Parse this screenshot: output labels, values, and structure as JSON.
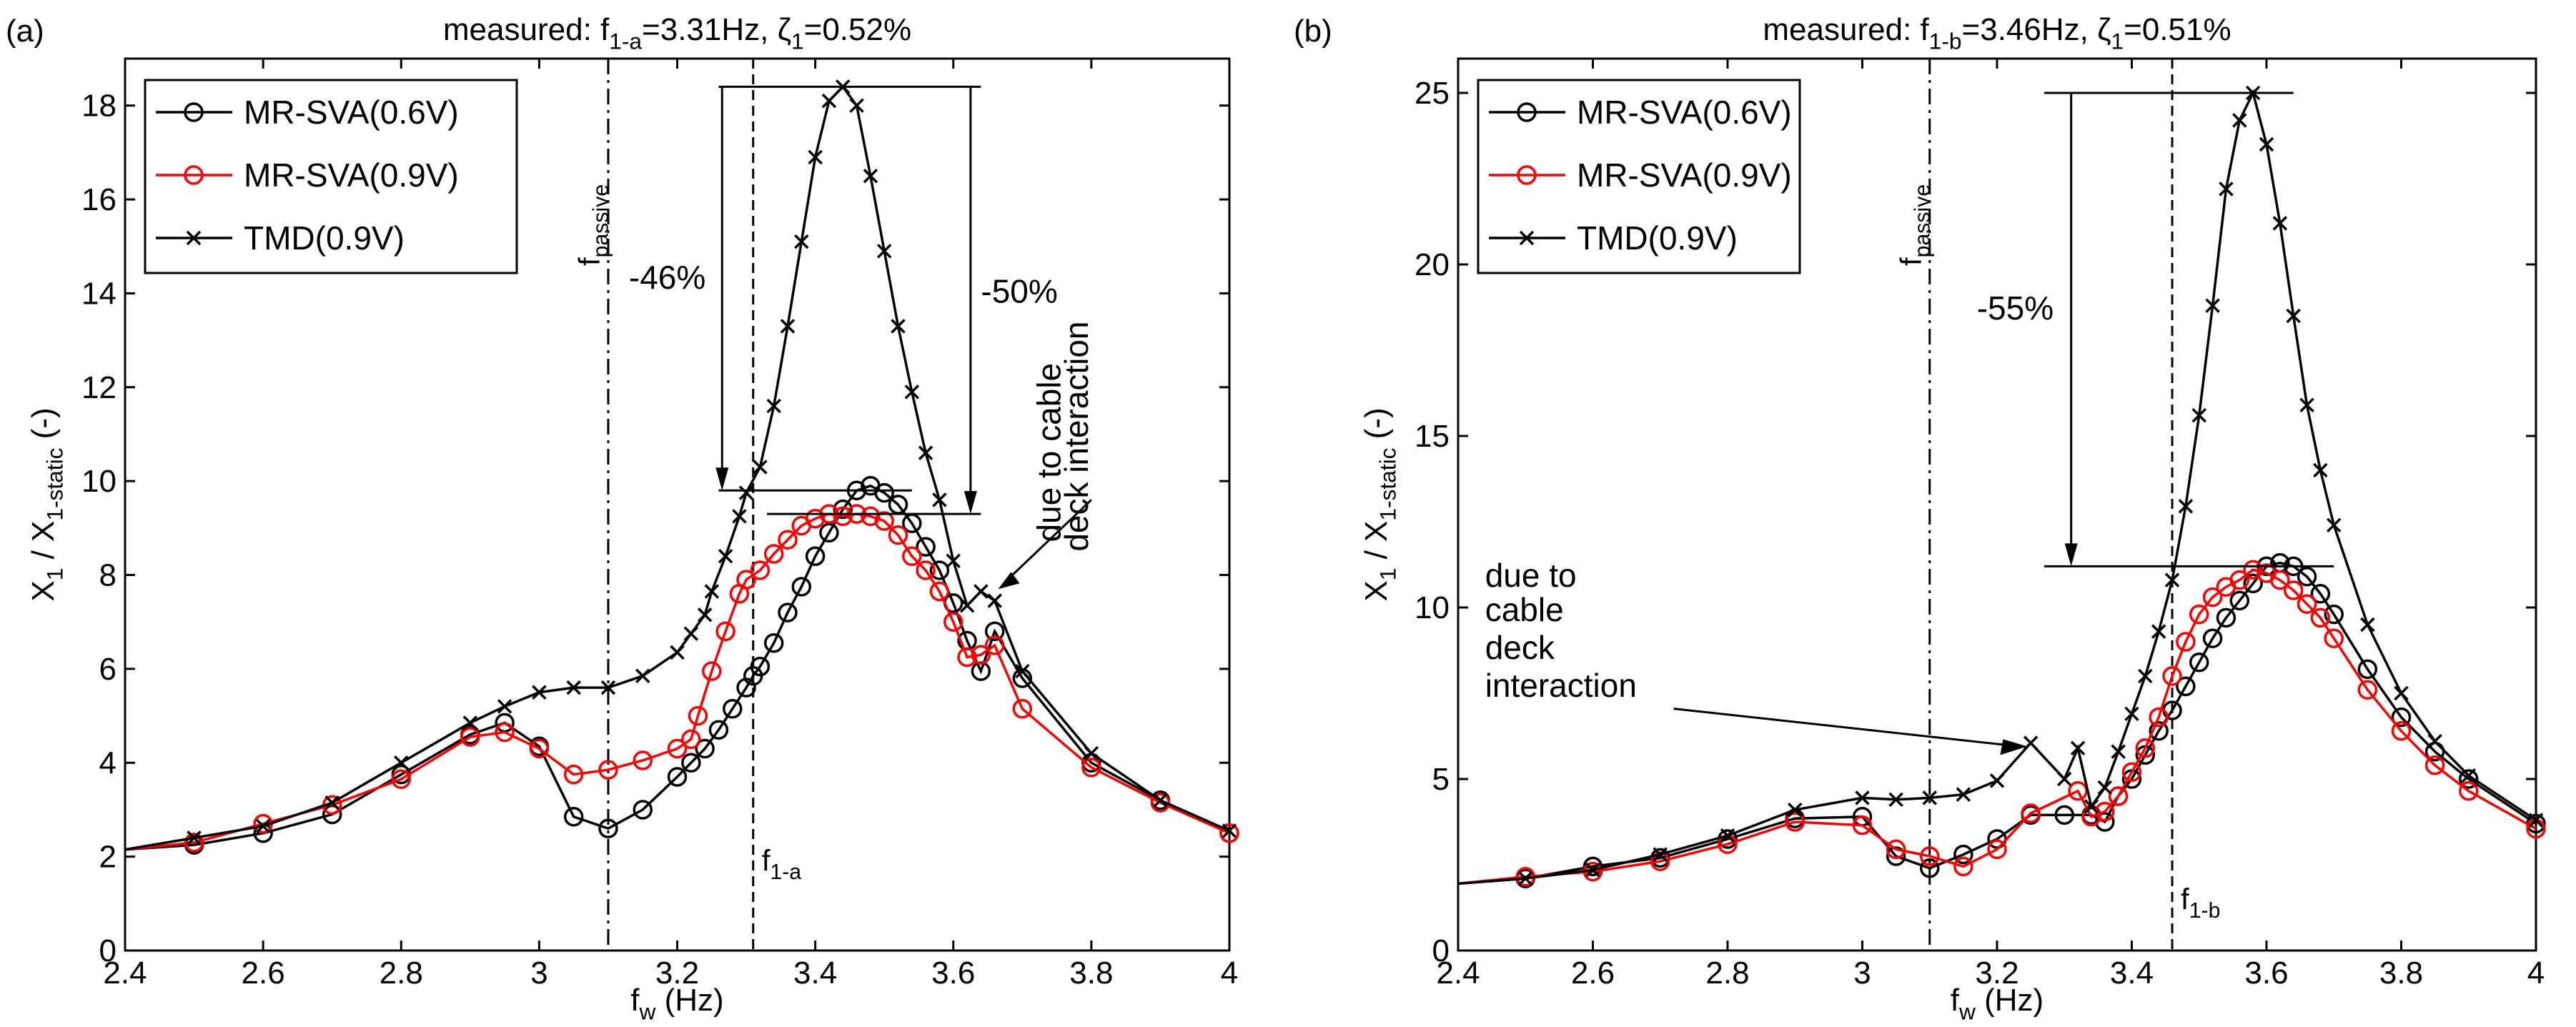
{
  "chart_data": [
    {
      "type": "line",
      "panel_label": "(a)",
      "title_parts": [
        {
          "t": "measured: f"
        },
        {
          "t": "1-a",
          "sub": true
        },
        {
          "t": "=3.31Hz, ζ"
        },
        {
          "t": "1",
          "sub": true
        },
        {
          "t": "=0.52%"
        }
      ],
      "xlabel_parts": [
        {
          "t": "f"
        },
        {
          "t": "w",
          "sub": true
        },
        {
          "t": " (Hz)"
        }
      ],
      "ylabel_parts": [
        {
          "t": "X"
        },
        {
          "t": "1",
          "sub": true
        },
        {
          "t": " / X"
        },
        {
          "t": "1-static",
          "sub": true
        },
        {
          "t": " (-)"
        }
      ],
      "xlim": [
        2.4,
        4
      ],
      "ylim": [
        0,
        19
      ],
      "xticks": [
        2.4,
        2.6,
        2.8,
        3,
        3.2,
        3.4,
        3.6,
        3.8,
        4
      ],
      "xtick_labels": [
        "2.4",
        "2.6",
        "2.8",
        "3",
        "3.2",
        "3.4",
        "3.6",
        "3.8",
        "4"
      ],
      "yticks": [
        0,
        2,
        4,
        6,
        8,
        10,
        12,
        14,
        16,
        18
      ],
      "ytick_labels": [
        "0",
        "2",
        "4",
        "6",
        "8",
        "10",
        "12",
        "14",
        "16",
        "18"
      ],
      "legend_placement": "top-left",
      "series": [
        {
          "name": "MR-SVA(0.6V)",
          "color": "#000000",
          "marker": "circle",
          "x": [
            2.4,
            2.5,
            2.6,
            2.7,
            2.8,
            2.9,
            2.95,
            3.0,
            3.05,
            3.1,
            3.15,
            3.2,
            3.22,
            3.24,
            3.26,
            3.28,
            3.3,
            3.31,
            3.32,
            3.34,
            3.36,
            3.38,
            3.4,
            3.42,
            3.44,
            3.46,
            3.48,
            3.5,
            3.52,
            3.54,
            3.56,
            3.58,
            3.6,
            3.62,
            3.64,
            3.66,
            3.7,
            3.8,
            3.9,
            4.0
          ],
          "y": [
            2.15,
            2.25,
            2.5,
            2.9,
            3.75,
            4.6,
            4.85,
            4.35,
            2.85,
            2.6,
            3.0,
            3.7,
            4.0,
            4.3,
            4.7,
            5.15,
            5.6,
            5.85,
            6.05,
            6.55,
            7.2,
            7.75,
            8.4,
            8.9,
            9.4,
            9.8,
            9.9,
            9.75,
            9.5,
            9.1,
            8.6,
            8.1,
            7.4,
            6.6,
            5.95,
            6.8,
            5.8,
            4.0,
            3.2,
            2.5
          ]
        },
        {
          "name": "MR-SVA(0.9V)",
          "color": "#ff0000",
          "marker": "circle",
          "x": [
            2.4,
            2.5,
            2.6,
            2.7,
            2.8,
            2.9,
            2.95,
            3.0,
            3.05,
            3.1,
            3.15,
            3.2,
            3.22,
            3.23,
            3.25,
            3.27,
            3.29,
            3.3,
            3.32,
            3.34,
            3.36,
            3.38,
            3.4,
            3.42,
            3.44,
            3.46,
            3.48,
            3.5,
            3.52,
            3.54,
            3.56,
            3.58,
            3.6,
            3.62,
            3.64,
            3.66,
            3.7,
            3.8,
            3.9,
            4.0
          ],
          "y": [
            2.15,
            2.3,
            2.7,
            3.1,
            3.65,
            4.55,
            4.65,
            4.3,
            3.75,
            3.85,
            4.05,
            4.3,
            4.5,
            5.0,
            5.95,
            6.8,
            7.6,
            7.9,
            8.1,
            8.45,
            8.75,
            9.05,
            9.2,
            9.3,
            9.25,
            9.3,
            9.25,
            9.15,
            8.85,
            8.4,
            8.1,
            7.65,
            7.0,
            6.25,
            6.3,
            6.5,
            5.15,
            3.9,
            3.15,
            2.5
          ]
        },
        {
          "name": "TMD(0.9V)",
          "color": "#000000",
          "marker": "x",
          "x": [
            2.4,
            2.5,
            2.6,
            2.7,
            2.8,
            2.9,
            2.95,
            3.0,
            3.05,
            3.1,
            3.15,
            3.2,
            3.22,
            3.24,
            3.25,
            3.27,
            3.29,
            3.3,
            3.32,
            3.34,
            3.36,
            3.38,
            3.4,
            3.42,
            3.44,
            3.46,
            3.48,
            3.5,
            3.52,
            3.54,
            3.56,
            3.58,
            3.6,
            3.62,
            3.64,
            3.66,
            3.7,
            3.8,
            3.9,
            4.0
          ],
          "y": [
            2.15,
            2.4,
            2.65,
            3.15,
            4.0,
            4.85,
            5.2,
            5.5,
            5.6,
            5.6,
            5.85,
            6.35,
            6.75,
            7.15,
            7.65,
            8.4,
            9.25,
            9.75,
            10.3,
            11.6,
            13.3,
            15.1,
            16.9,
            18.1,
            18.4,
            18.0,
            16.5,
            14.9,
            13.3,
            11.9,
            10.6,
            9.6,
            8.3,
            7.35,
            7.65,
            7.45,
            5.95,
            4.2,
            3.2,
            2.55
          ]
        }
      ],
      "vlines": [
        {
          "x": 3.1,
          "style": "dashdot",
          "label_parts": [
            {
              "t": "f"
            },
            {
              "t": "passive",
              "sub": true
            }
          ]
        },
        {
          "x": 3.31,
          "style": "dashed",
          "label_parts": [
            {
              "t": "f"
            },
            {
              "t": "1-a",
              "sub": true
            }
          ]
        }
      ],
      "annotations": [
        "-46%",
        "-50%",
        "due to cable",
        "deck interaction"
      ]
    },
    {
      "type": "line",
      "panel_label": "(b)",
      "title_parts": [
        {
          "t": "measured: f"
        },
        {
          "t": "1-b",
          "sub": true
        },
        {
          "t": "=3.46Hz, ζ"
        },
        {
          "t": "1",
          "sub": true
        },
        {
          "t": "=0.51%"
        }
      ],
      "xlabel_parts": [
        {
          "t": "f"
        },
        {
          "t": "w",
          "sub": true
        },
        {
          "t": " (Hz)"
        }
      ],
      "ylabel_parts": [
        {
          "t": "X"
        },
        {
          "t": "1",
          "sub": true
        },
        {
          "t": " / X"
        },
        {
          "t": "1-static",
          "sub": true
        },
        {
          "t": " (-)"
        }
      ],
      "xlim": [
        2.4,
        4
      ],
      "ylim": [
        0,
        26
      ],
      "xticks": [
        2.4,
        2.6,
        2.8,
        3,
        3.2,
        3.4,
        3.6,
        3.8,
        4
      ],
      "xtick_labels": [
        "2.4",
        "2.6",
        "2.8",
        "3",
        "3.2",
        "3.4",
        "3.6",
        "3.8",
        "4"
      ],
      "yticks": [
        0,
        5,
        10,
        15,
        20,
        25
      ],
      "ytick_labels": [
        "0",
        "5",
        "10",
        "15",
        "20",
        "25"
      ],
      "legend_placement": "top-left",
      "series": [
        {
          "name": "MR-SVA(0.6V)",
          "color": "#000000",
          "marker": "circle",
          "x": [
            2.4,
            2.5,
            2.6,
            2.7,
            2.8,
            2.9,
            3.0,
            3.05,
            3.1,
            3.15,
            3.2,
            3.25,
            3.3,
            3.34,
            3.36,
            3.38,
            3.4,
            3.42,
            3.44,
            3.46,
            3.48,
            3.5,
            3.52,
            3.54,
            3.56,
            3.58,
            3.6,
            3.62,
            3.64,
            3.66,
            3.68,
            3.7,
            3.75,
            3.8,
            3.85,
            3.9,
            4.0
          ],
          "y": [
            1.95,
            2.1,
            2.45,
            2.7,
            3.25,
            3.85,
            3.9,
            2.75,
            2.4,
            2.8,
            3.25,
            3.95,
            3.95,
            3.95,
            3.75,
            4.5,
            5.0,
            5.7,
            6.4,
            7.0,
            7.7,
            8.4,
            9.1,
            9.7,
            10.2,
            10.7,
            11.2,
            11.3,
            11.2,
            10.9,
            10.4,
            9.8,
            8.2,
            6.8,
            5.8,
            5.0,
            3.7
          ]
        },
        {
          "name": "MR-SVA(0.9V)",
          "color": "#ff0000",
          "marker": "circle",
          "x": [
            2.4,
            2.5,
            2.6,
            2.7,
            2.8,
            2.9,
            3.0,
            3.05,
            3.1,
            3.15,
            3.2,
            3.25,
            3.32,
            3.34,
            3.36,
            3.38,
            3.4,
            3.42,
            3.44,
            3.46,
            3.48,
            3.5,
            3.52,
            3.54,
            3.56,
            3.58,
            3.6,
            3.62,
            3.64,
            3.66,
            3.68,
            3.7,
            3.75,
            3.8,
            3.85,
            3.9,
            4.0
          ],
          "y": [
            1.95,
            2.15,
            2.3,
            2.6,
            3.1,
            3.75,
            3.65,
            2.95,
            2.75,
            2.45,
            2.95,
            4.0,
            4.65,
            3.9,
            4.05,
            4.5,
            5.2,
            5.9,
            6.8,
            8.0,
            9.0,
            9.8,
            10.3,
            10.6,
            10.8,
            11.1,
            11.0,
            10.8,
            10.5,
            10.1,
            9.7,
            9.1,
            7.6,
            6.4,
            5.4,
            4.65,
            3.55
          ]
        },
        {
          "name": "TMD(0.9V)",
          "color": "#000000",
          "marker": "x",
          "x": [
            2.4,
            2.5,
            2.6,
            2.7,
            2.8,
            2.9,
            3.0,
            3.05,
            3.1,
            3.15,
            3.2,
            3.25,
            3.3,
            3.32,
            3.34,
            3.36,
            3.38,
            3.4,
            3.42,
            3.44,
            3.46,
            3.48,
            3.5,
            3.52,
            3.54,
            3.56,
            3.58,
            3.6,
            3.62,
            3.64,
            3.66,
            3.68,
            3.7,
            3.75,
            3.8,
            3.85,
            3.9,
            4.0
          ],
          "y": [
            1.95,
            2.1,
            2.35,
            2.8,
            3.35,
            4.1,
            4.45,
            4.4,
            4.45,
            4.55,
            4.95,
            6.05,
            5.0,
            5.9,
            4.2,
            4.75,
            5.8,
            6.9,
            8.0,
            9.3,
            10.8,
            12.95,
            15.6,
            18.8,
            22.2,
            24.2,
            25.0,
            23.5,
            21.2,
            18.5,
            15.9,
            14.0,
            12.4,
            9.5,
            7.5,
            6.1,
            5.1,
            3.8
          ]
        }
      ],
      "vlines": [
        {
          "x": 3.1,
          "style": "dashdot",
          "label_parts": [
            {
              "t": "f"
            },
            {
              "t": "passive",
              "sub": true
            }
          ]
        },
        {
          "x": 3.46,
          "style": "dashed",
          "label_parts": [
            {
              "t": "f"
            },
            {
              "t": "1-b",
              "sub": true
            }
          ]
        }
      ],
      "annotations": [
        "-55%",
        "due to",
        "cable",
        "deck",
        "interaction"
      ]
    }
  ]
}
